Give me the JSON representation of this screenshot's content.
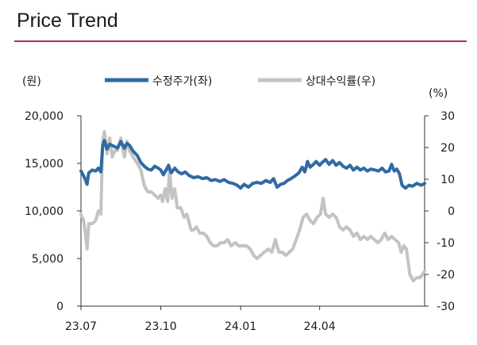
{
  "page": {
    "title": "Price Trend"
  },
  "colors": {
    "title_rule": "#c2255c",
    "price_line": "#2f6aa3",
    "relative_line": "#c3c3c3",
    "axis": "#333333"
  },
  "chart_data": {
    "type": "line",
    "title": "Price Trend",
    "y_left_unit": "(원)",
    "y_right_unit": "(%)",
    "ylim_left": [
      0,
      20000
    ],
    "ylim_right": [
      -30,
      30
    ],
    "y_left_ticks": [
      0,
      5000,
      10000,
      15000,
      20000
    ],
    "y_left_tick_labels": [
      "0",
      "5,000",
      "10,000",
      "15,000",
      "20,000"
    ],
    "y_right_ticks": [
      -30,
      -20,
      -10,
      0,
      10,
      20,
      30
    ],
    "y_right_tick_labels": [
      "-30",
      "-20",
      "-10",
      "0",
      "10",
      "20",
      "30"
    ],
    "x_range": [
      "2023-07-01",
      "2024-07-31"
    ],
    "x_ticks": [
      "2023-07-01",
      "2023-10-01",
      "2024-01-01",
      "2024-04-01"
    ],
    "x_tick_labels": [
      "23.07",
      "23.10",
      "24.01",
      "24.04"
    ],
    "legend_position": "top",
    "grid": false,
    "series": [
      {
        "name": "수정주가(좌)",
        "axis": "left",
        "points": [
          [
            "2023-07-01",
            14200
          ],
          [
            "2023-07-04",
            13700
          ],
          [
            "2023-07-06",
            13300
          ],
          [
            "2023-07-08",
            12800
          ],
          [
            "2023-07-10",
            14000
          ],
          [
            "2023-07-14",
            14300
          ],
          [
            "2023-07-18",
            14200
          ],
          [
            "2023-07-21",
            14500
          ],
          [
            "2023-07-24",
            14100
          ],
          [
            "2023-07-26",
            16800
          ],
          [
            "2023-07-28",
            17400
          ],
          [
            "2023-07-31",
            16500
          ],
          [
            "2023-08-03",
            17000
          ],
          [
            "2023-08-08",
            16800
          ],
          [
            "2023-08-12",
            16600
          ],
          [
            "2023-08-16",
            17300
          ],
          [
            "2023-08-20",
            16600
          ],
          [
            "2023-08-23",
            17100
          ],
          [
            "2023-08-26",
            16900
          ],
          [
            "2023-08-30",
            16300
          ],
          [
            "2023-09-04",
            15800
          ],
          [
            "2023-09-08",
            15100
          ],
          [
            "2023-09-12",
            14700
          ],
          [
            "2023-09-16",
            14400
          ],
          [
            "2023-09-20",
            14300
          ],
          [
            "2023-09-24",
            14700
          ],
          [
            "2023-09-28",
            14500
          ],
          [
            "2023-10-01",
            14300
          ],
          [
            "2023-10-04",
            13800
          ],
          [
            "2023-10-07",
            14300
          ],
          [
            "2023-10-10",
            14800
          ],
          [
            "2023-10-13",
            14000
          ],
          [
            "2023-10-17",
            14500
          ],
          [
            "2023-10-21",
            14100
          ],
          [
            "2023-10-25",
            13900
          ],
          [
            "2023-10-29",
            14100
          ],
          [
            "2023-11-03",
            13700
          ],
          [
            "2023-11-08",
            13500
          ],
          [
            "2023-11-13",
            13600
          ],
          [
            "2023-11-18",
            13400
          ],
          [
            "2023-11-23",
            13500
          ],
          [
            "2023-11-28",
            13200
          ],
          [
            "2023-12-03",
            13300
          ],
          [
            "2023-12-08",
            13100
          ],
          [
            "2023-12-13",
            13300
          ],
          [
            "2023-12-18",
            13000
          ],
          [
            "2023-12-23",
            12900
          ],
          [
            "2023-12-28",
            12700
          ],
          [
            "2024-01-01",
            12400
          ],
          [
            "2024-01-05",
            12800
          ],
          [
            "2024-01-10",
            12500
          ],
          [
            "2024-01-15",
            12900
          ],
          [
            "2024-01-20",
            13000
          ],
          [
            "2024-01-25",
            12900
          ],
          [
            "2024-01-30",
            13200
          ],
          [
            "2024-02-04",
            13000
          ],
          [
            "2024-02-08",
            13400
          ],
          [
            "2024-02-12",
            12500
          ],
          [
            "2024-02-16",
            12800
          ],
          [
            "2024-02-20",
            12900
          ],
          [
            "2024-02-24",
            13200
          ],
          [
            "2024-02-28",
            13400
          ],
          [
            "2024-03-04",
            13700
          ],
          [
            "2024-03-08",
            14000
          ],
          [
            "2024-03-12",
            14600
          ],
          [
            "2024-03-15",
            14100
          ],
          [
            "2024-03-18",
            15200
          ],
          [
            "2024-03-21",
            14600
          ],
          [
            "2024-03-25",
            14900
          ],
          [
            "2024-03-28",
            15200
          ],
          [
            "2024-04-01",
            14800
          ],
          [
            "2024-04-04",
            15100
          ],
          [
            "2024-04-08",
            15400
          ],
          [
            "2024-04-12",
            14900
          ],
          [
            "2024-04-16",
            15300
          ],
          [
            "2024-04-20",
            14800
          ],
          [
            "2024-04-24",
            15100
          ],
          [
            "2024-04-28",
            14700
          ],
          [
            "2024-05-02",
            14500
          ],
          [
            "2024-05-06",
            14800
          ],
          [
            "2024-05-10",
            14300
          ],
          [
            "2024-05-14",
            14600
          ],
          [
            "2024-05-18",
            14300
          ],
          [
            "2024-05-22",
            14500
          ],
          [
            "2024-05-26",
            14200
          ],
          [
            "2024-05-30",
            14400
          ],
          [
            "2024-06-04",
            14300
          ],
          [
            "2024-06-08",
            14200
          ],
          [
            "2024-06-12",
            14500
          ],
          [
            "2024-06-16",
            14100
          ],
          [
            "2024-06-20",
            14200
          ],
          [
            "2024-06-23",
            14900
          ],
          [
            "2024-06-26",
            14200
          ],
          [
            "2024-06-29",
            14400
          ],
          [
            "2024-07-02",
            13900
          ],
          [
            "2024-07-05",
            12700
          ],
          [
            "2024-07-09",
            12400
          ],
          [
            "2024-07-13",
            12700
          ],
          [
            "2024-07-17",
            12600
          ],
          [
            "2024-07-22",
            12900
          ],
          [
            "2024-07-27",
            12700
          ],
          [
            "2024-07-31",
            12900
          ]
        ]
      },
      {
        "name": "상대수익률(우)",
        "axis": "right",
        "points": [
          [
            "2023-07-01",
            -1
          ],
          [
            "2023-07-04",
            -3
          ],
          [
            "2023-07-06",
            -7
          ],
          [
            "2023-07-08",
            -12
          ],
          [
            "2023-07-10",
            -4
          ],
          [
            "2023-07-14",
            -4
          ],
          [
            "2023-07-18",
            -3
          ],
          [
            "2023-07-21",
            0
          ],
          [
            "2023-07-24",
            -1
          ],
          [
            "2023-07-26",
            22
          ],
          [
            "2023-07-28",
            25
          ],
          [
            "2023-07-31",
            18
          ],
          [
            "2023-08-03",
            23
          ],
          [
            "2023-08-06",
            17
          ],
          [
            "2023-08-09",
            19
          ],
          [
            "2023-08-12",
            19
          ],
          [
            "2023-08-16",
            23
          ],
          [
            "2023-08-20",
            17
          ],
          [
            "2023-08-23",
            22
          ],
          [
            "2023-08-26",
            19
          ],
          [
            "2023-08-30",
            17
          ],
          [
            "2023-09-04",
            15
          ],
          [
            "2023-09-08",
            13
          ],
          [
            "2023-09-12",
            8
          ],
          [
            "2023-09-16",
            6
          ],
          [
            "2023-09-20",
            6
          ],
          [
            "2023-09-24",
            5
          ],
          [
            "2023-09-28",
            4
          ],
          [
            "2023-10-01",
            5
          ],
          [
            "2023-10-03",
            3
          ],
          [
            "2023-10-06",
            7
          ],
          [
            "2023-10-09",
            3
          ],
          [
            "2023-10-11",
            13
          ],
          [
            "2023-10-14",
            4
          ],
          [
            "2023-10-17",
            7
          ],
          [
            "2023-10-20",
            1
          ],
          [
            "2023-10-24",
            1
          ],
          [
            "2023-10-28",
            -2
          ],
          [
            "2023-10-31",
            -1
          ],
          [
            "2023-11-02",
            -3
          ],
          [
            "2023-11-05",
            -6
          ],
          [
            "2023-11-08",
            -6
          ],
          [
            "2023-11-11",
            -5
          ],
          [
            "2023-11-15",
            -7
          ],
          [
            "2023-11-19",
            -7
          ],
          [
            "2023-11-23",
            -8
          ],
          [
            "2023-11-27",
            -10
          ],
          [
            "2023-12-01",
            -11
          ],
          [
            "2023-12-05",
            -11
          ],
          [
            "2023-12-09",
            -10
          ],
          [
            "2023-12-13",
            -10
          ],
          [
            "2023-12-17",
            -9
          ],
          [
            "2023-12-21",
            -11
          ],
          [
            "2023-12-26",
            -10
          ],
          [
            "2023-12-30",
            -11
          ],
          [
            "2024-01-04",
            -11
          ],
          [
            "2024-01-08",
            -11
          ],
          [
            "2024-01-12",
            -12
          ],
          [
            "2024-01-16",
            -14
          ],
          [
            "2024-01-20",
            -15
          ],
          [
            "2024-01-24",
            -14
          ],
          [
            "2024-01-28",
            -13
          ],
          [
            "2024-02-02",
            -12
          ],
          [
            "2024-02-06",
            -13
          ],
          [
            "2024-02-10",
            -9
          ],
          [
            "2024-02-14",
            -13
          ],
          [
            "2024-02-18",
            -13
          ],
          [
            "2024-02-22",
            -14
          ],
          [
            "2024-02-26",
            -13
          ],
          [
            "2024-03-01",
            -12
          ],
          [
            "2024-03-05",
            -9
          ],
          [
            "2024-03-09",
            -6
          ],
          [
            "2024-03-13",
            -2
          ],
          [
            "2024-03-17",
            -1
          ],
          [
            "2024-03-21",
            -3
          ],
          [
            "2024-03-25",
            -4
          ],
          [
            "2024-03-29",
            -2
          ],
          [
            "2024-04-02",
            -1
          ],
          [
            "2024-04-05",
            4
          ],
          [
            "2024-04-08",
            -1
          ],
          [
            "2024-04-12",
            -2
          ],
          [
            "2024-04-16",
            -1
          ],
          [
            "2024-04-20",
            -2
          ],
          [
            "2024-04-24",
            -5
          ],
          [
            "2024-04-28",
            -6
          ],
          [
            "2024-05-02",
            -5
          ],
          [
            "2024-05-06",
            -6
          ],
          [
            "2024-05-10",
            -8
          ],
          [
            "2024-05-14",
            -7
          ],
          [
            "2024-05-18",
            -9
          ],
          [
            "2024-05-22",
            -8
          ],
          [
            "2024-05-26",
            -9
          ],
          [
            "2024-05-30",
            -8
          ],
          [
            "2024-06-03",
            -9
          ],
          [
            "2024-06-07",
            -10
          ],
          [
            "2024-06-11",
            -9
          ],
          [
            "2024-06-15",
            -7
          ],
          [
            "2024-06-19",
            -9
          ],
          [
            "2024-06-23",
            -8
          ],
          [
            "2024-06-27",
            -9
          ],
          [
            "2024-07-01",
            -10
          ],
          [
            "2024-07-04",
            -13
          ],
          [
            "2024-07-07",
            -11
          ],
          [
            "2024-07-10",
            -12
          ],
          [
            "2024-07-14",
            -20
          ],
          [
            "2024-07-18",
            -22
          ],
          [
            "2024-07-22",
            -21
          ],
          [
            "2024-07-26",
            -21
          ],
          [
            "2024-07-31",
            -19
          ]
        ]
      }
    ]
  }
}
